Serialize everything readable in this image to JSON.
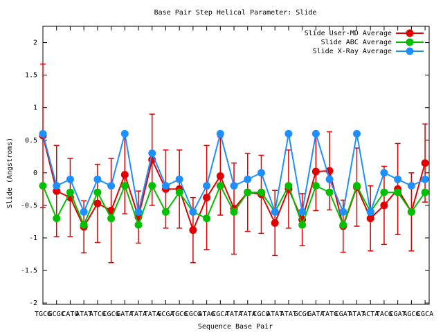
{
  "chart_data": {
    "type": "line",
    "title": "Base Pair Step Helical Parameter: Slide",
    "x_label": "Sequence Base Pair",
    "y_label": "Slide (Angstroms)",
    "categories": [
      "TGCG",
      "GCGC",
      "CATG",
      "ATAT",
      "ATCG",
      "CGCG",
      "GATA",
      "TATA",
      "TATA",
      "GCGA",
      "TGCG",
      "CGCG",
      "ATAG",
      "CGCA",
      "TATA",
      "TATA",
      "CGCG",
      "ATAT",
      "ATAT",
      "GCGC",
      "GATA",
      "TATG",
      "CGAT",
      "ATAT",
      "ACTA",
      "TACG",
      "CGAT",
      "AGCG",
      "CGCA"
    ],
    "ylim": [
      -2.02,
      2.25
    ],
    "yticks": [
      -2,
      -1.5,
      -1,
      -0.5,
      0,
      0.5,
      1,
      1.5,
      2
    ],
    "legend": "top-right",
    "series": [
      {
        "name": "Slide User-MD Average",
        "color": "#e00000",
        "values": [
          0.57,
          -0.28,
          -0.38,
          -0.83,
          -0.47,
          -0.58,
          -0.03,
          -0.68,
          0.2,
          -0.25,
          -0.25,
          -0.88,
          -0.38,
          -0.05,
          -0.55,
          -0.3,
          -0.33,
          -0.77,
          -0.25,
          -0.72,
          0.02,
          0.03,
          -0.82,
          -0.22,
          -0.7,
          -0.5,
          -0.25,
          -0.6,
          0.15
        ],
        "errors": [
          1.1,
          0.7,
          0.6,
          0.4,
          0.6,
          0.8,
          0.6,
          0.4,
          0.7,
          0.6,
          0.6,
          0.5,
          0.8,
          0.6,
          0.7,
          0.6,
          0.6,
          0.5,
          0.6,
          0.4,
          0.6,
          0.6,
          0.4,
          0.6,
          0.5,
          0.6,
          0.7,
          0.6,
          0.6
        ]
      },
      {
        "name": "Slide ABC Average",
        "color": "#00c000",
        "values": [
          -0.2,
          -0.7,
          -0.3,
          -0.8,
          -0.3,
          -0.7,
          -0.2,
          -0.8,
          -0.2,
          -0.6,
          -0.3,
          -0.6,
          -0.7,
          -0.2,
          -0.6,
          -0.3,
          -0.3,
          -0.6,
          -0.2,
          -0.8,
          -0.2,
          -0.3,
          -0.8,
          -0.2,
          -0.6,
          -0.3,
          -0.3,
          -0.6,
          -0.3
        ]
      },
      {
        "name": "Slide X-Ray Average",
        "color": "#1e8fff",
        "values": [
          0.6,
          -0.2,
          -0.1,
          -0.6,
          -0.1,
          -0.2,
          0.6,
          -0.6,
          0.3,
          -0.2,
          -0.1,
          -0.6,
          -0.2,
          0.6,
          -0.2,
          -0.1,
          0,
          -0.6,
          0.6,
          -0.6,
          0.6,
          -0.1,
          -0.6,
          0.6,
          -0.6,
          0,
          -0.1,
          -0.2,
          -0.1
        ]
      }
    ]
  }
}
